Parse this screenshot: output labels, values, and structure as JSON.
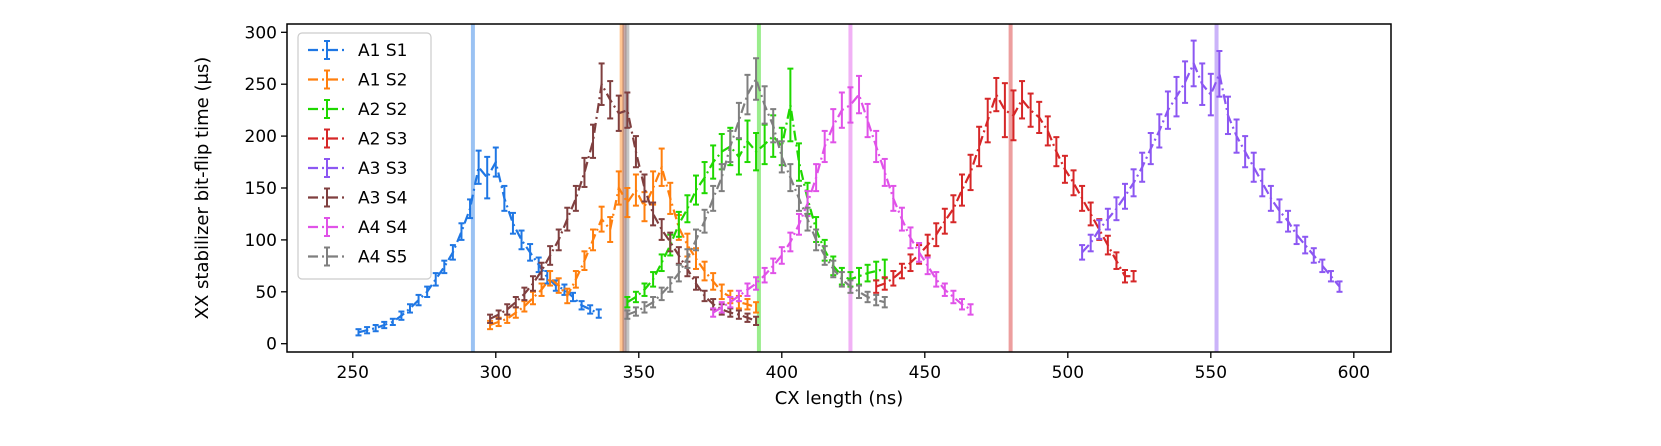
{
  "chart_data": {
    "type": "line",
    "xlabel": "CX length (ns)",
    "ylabel": "XX stabilizer bit-flip time (μs)",
    "xlim": [
      227,
      613
    ],
    "ylim": [
      -8,
      308
    ],
    "xticks": [
      250,
      300,
      350,
      400,
      450,
      500,
      550,
      600
    ],
    "yticks": [
      0,
      50,
      100,
      150,
      200,
      250,
      300
    ],
    "grid": false,
    "legend_placement": "top-left",
    "series": [
      {
        "name": "A1 S1",
        "color": "#1f77e4",
        "vline": 292,
        "x": [
          252,
          255,
          258,
          261,
          264,
          267,
          270,
          273,
          276,
          279,
          282,
          285,
          288,
          291,
          294,
          297,
          300,
          303,
          306,
          309,
          312,
          315,
          318,
          321,
          324,
          327,
          330,
          333,
          336
        ],
        "y": [
          11,
          13,
          15,
          18,
          21,
          27,
          34,
          42,
          50,
          62,
          74,
          88,
          108,
          130,
          170,
          160,
          175,
          140,
          116,
          100,
          88,
          76,
          64,
          56,
          52,
          45,
          37,
          33,
          29
        ],
        "err": [
          3,
          3,
          3,
          3,
          3,
          4,
          4,
          5,
          5,
          6,
          6,
          7,
          8,
          9,
          16,
          20,
          14,
          12,
          10,
          9,
          8,
          7,
          6,
          5,
          5,
          4,
          4,
          4,
          4
        ]
      },
      {
        "name": "A1 S2",
        "color": "#ff7f0e",
        "vline": 344,
        "x": [
          298,
          301,
          304,
          307,
          310,
          313,
          316,
          319,
          322,
          325,
          328,
          331,
          334,
          337,
          340,
          343,
          346,
          349,
          352,
          355,
          358,
          361,
          364,
          367,
          370,
          373,
          376,
          379,
          382,
          385,
          388,
          391
        ],
        "y": [
          18,
          21,
          24,
          30,
          36,
          44,
          52,
          63,
          56,
          46,
          62,
          80,
          100,
          120,
          110,
          150,
          136,
          148,
          132,
          150,
          170,
          140,
          112,
          95,
          82,
          70,
          60,
          50,
          45,
          40,
          38,
          35
        ],
        "err": [
          4,
          4,
          4,
          5,
          5,
          6,
          6,
          7,
          7,
          7,
          8,
          9,
          10,
          12,
          12,
          16,
          14,
          15,
          14,
          16,
          18,
          15,
          12,
          11,
          10,
          9,
          8,
          7,
          6,
          6,
          5,
          5
        ]
      },
      {
        "name": "A2 S2",
        "color": "#1fd800",
        "vline": 392,
        "x": [
          346,
          349,
          352,
          355,
          358,
          361,
          364,
          367,
          370,
          373,
          376,
          379,
          382,
          385,
          388,
          391,
          394,
          397,
          400,
          403,
          406,
          409,
          412,
          415,
          418,
          421,
          424,
          427,
          430,
          433,
          436
        ],
        "y": [
          40,
          45,
          52,
          62,
          78,
          95,
          115,
          130,
          148,
          160,
          175,
          185,
          190,
          180,
          195,
          185,
          192,
          200,
          190,
          230,
          175,
          140,
          110,
          90,
          75,
          65,
          62,
          65,
          68,
          70,
          72
        ],
        "err": [
          5,
          5,
          6,
          7,
          8,
          10,
          12,
          13,
          14,
          15,
          16,
          17,
          18,
          17,
          20,
          18,
          19,
          20,
          18,
          35,
          18,
          15,
          12,
          10,
          9,
          8,
          7,
          8,
          8,
          9,
          9
        ]
      },
      {
        "name": "A2 S3",
        "color": "#d62728",
        "vline": 480,
        "x": [
          433,
          436,
          439,
          442,
          445,
          448,
          451,
          454,
          457,
          460,
          463,
          466,
          469,
          472,
          475,
          478,
          481,
          484,
          487,
          490,
          493,
          496,
          499,
          502,
          505,
          508,
          511,
          514,
          517,
          520,
          523
        ],
        "y": [
          55,
          58,
          63,
          70,
          78,
          86,
          95,
          105,
          118,
          130,
          148,
          165,
          190,
          215,
          240,
          225,
          220,
          235,
          225,
          218,
          205,
          185,
          168,
          155,
          140,
          125,
          110,
          95,
          80,
          65,
          65
        ],
        "err": [
          6,
          6,
          7,
          7,
          8,
          9,
          10,
          11,
          12,
          13,
          15,
          17,
          19,
          21,
          16,
          26,
          24,
          18,
          16,
          15,
          14,
          14,
          13,
          12,
          12,
          11,
          10,
          9,
          8,
          6,
          5
        ]
      },
      {
        "name": "A3 S3",
        "color": "#8c57f2",
        "vline": 552,
        "x": [
          505,
          508,
          511,
          514,
          517,
          520,
          523,
          526,
          529,
          532,
          535,
          538,
          541,
          544,
          547,
          550,
          553,
          556,
          559,
          562,
          565,
          568,
          571,
          574,
          577,
          580,
          583,
          586,
          589,
          592,
          595
        ],
        "y": [
          88,
          97,
          110,
          120,
          130,
          142,
          155,
          170,
          188,
          205,
          225,
          238,
          252,
          270,
          250,
          240,
          260,
          220,
          200,
          185,
          170,
          155,
          140,
          128,
          118,
          105,
          95,
          85,
          75,
          65,
          55
        ],
        "err": [
          7,
          8,
          9,
          10,
          11,
          12,
          13,
          14,
          15,
          16,
          18,
          19,
          20,
          22,
          20,
          20,
          22,
          18,
          16,
          15,
          14,
          13,
          12,
          11,
          10,
          9,
          8,
          7,
          6,
          5,
          5
        ]
      },
      {
        "name": "A3 S4",
        "color": "#7f3f3f",
        "vline": 345,
        "x": [
          298,
          301,
          304,
          307,
          310,
          313,
          316,
          319,
          322,
          325,
          328,
          331,
          334,
          337,
          340,
          343,
          346,
          349,
          352,
          355,
          358,
          361,
          364,
          367,
          370,
          373,
          376,
          379,
          382,
          385,
          388,
          391
        ],
        "y": [
          24,
          28,
          33,
          40,
          48,
          58,
          70,
          85,
          100,
          120,
          140,
          165,
          195,
          250,
          235,
          222,
          225,
          185,
          150,
          125,
          110,
          98,
          85,
          72,
          58,
          46,
          38,
          33,
          30,
          28,
          25,
          22
        ],
        "err": [
          4,
          4,
          5,
          5,
          6,
          7,
          8,
          9,
          10,
          11,
          12,
          14,
          16,
          20,
          18,
          17,
          17,
          15,
          13,
          11,
          10,
          9,
          8,
          7,
          6,
          5,
          5,
          5,
          4,
          4,
          4,
          4
        ]
      },
      {
        "name": "A4 S4",
        "color": "#e052e8",
        "vline": 424,
        "x": [
          376,
          379,
          382,
          385,
          388,
          391,
          394,
          397,
          400,
          403,
          406,
          409,
          412,
          415,
          418,
          421,
          424,
          427,
          430,
          433,
          436,
          439,
          442,
          445,
          448,
          451,
          454,
          457,
          460,
          463,
          466
        ],
        "y": [
          30,
          35,
          40,
          46,
          52,
          58,
          66,
          75,
          85,
          98,
          115,
          135,
          160,
          190,
          210,
          225,
          230,
          240,
          215,
          190,
          165,
          140,
          120,
          102,
          88,
          75,
          62,
          52,
          45,
          38,
          33
        ],
        "err": [
          4,
          5,
          5,
          5,
          6,
          6,
          7,
          7,
          8,
          9,
          10,
          12,
          13,
          15,
          16,
          17,
          17,
          18,
          16,
          15,
          13,
          12,
          11,
          10,
          9,
          8,
          7,
          6,
          6,
          5,
          5
        ]
      },
      {
        "name": "A4 S5",
        "color": "#7f7f7f",
        "vline": 346,
        "x": [
          346,
          349,
          352,
          355,
          358,
          361,
          364,
          367,
          370,
          373,
          376,
          379,
          382,
          385,
          388,
          391,
          394,
          397,
          400,
          403,
          406,
          409,
          412,
          415,
          418,
          421,
          424,
          427,
          430,
          433,
          436
        ],
        "y": [
          28,
          31,
          35,
          40,
          48,
          57,
          68,
          82,
          100,
          118,
          140,
          160,
          190,
          215,
          240,
          255,
          230,
          210,
          180,
          160,
          140,
          120,
          100,
          85,
          72,
          62,
          55,
          50,
          45,
          42,
          40
        ],
        "err": [
          4,
          4,
          5,
          5,
          6,
          7,
          8,
          9,
          10,
          11,
          12,
          13,
          15,
          17,
          19,
          20,
          18,
          16,
          15,
          13,
          12,
          11,
          10,
          9,
          8,
          7,
          6,
          6,
          5,
          5,
          5
        ]
      }
    ]
  }
}
